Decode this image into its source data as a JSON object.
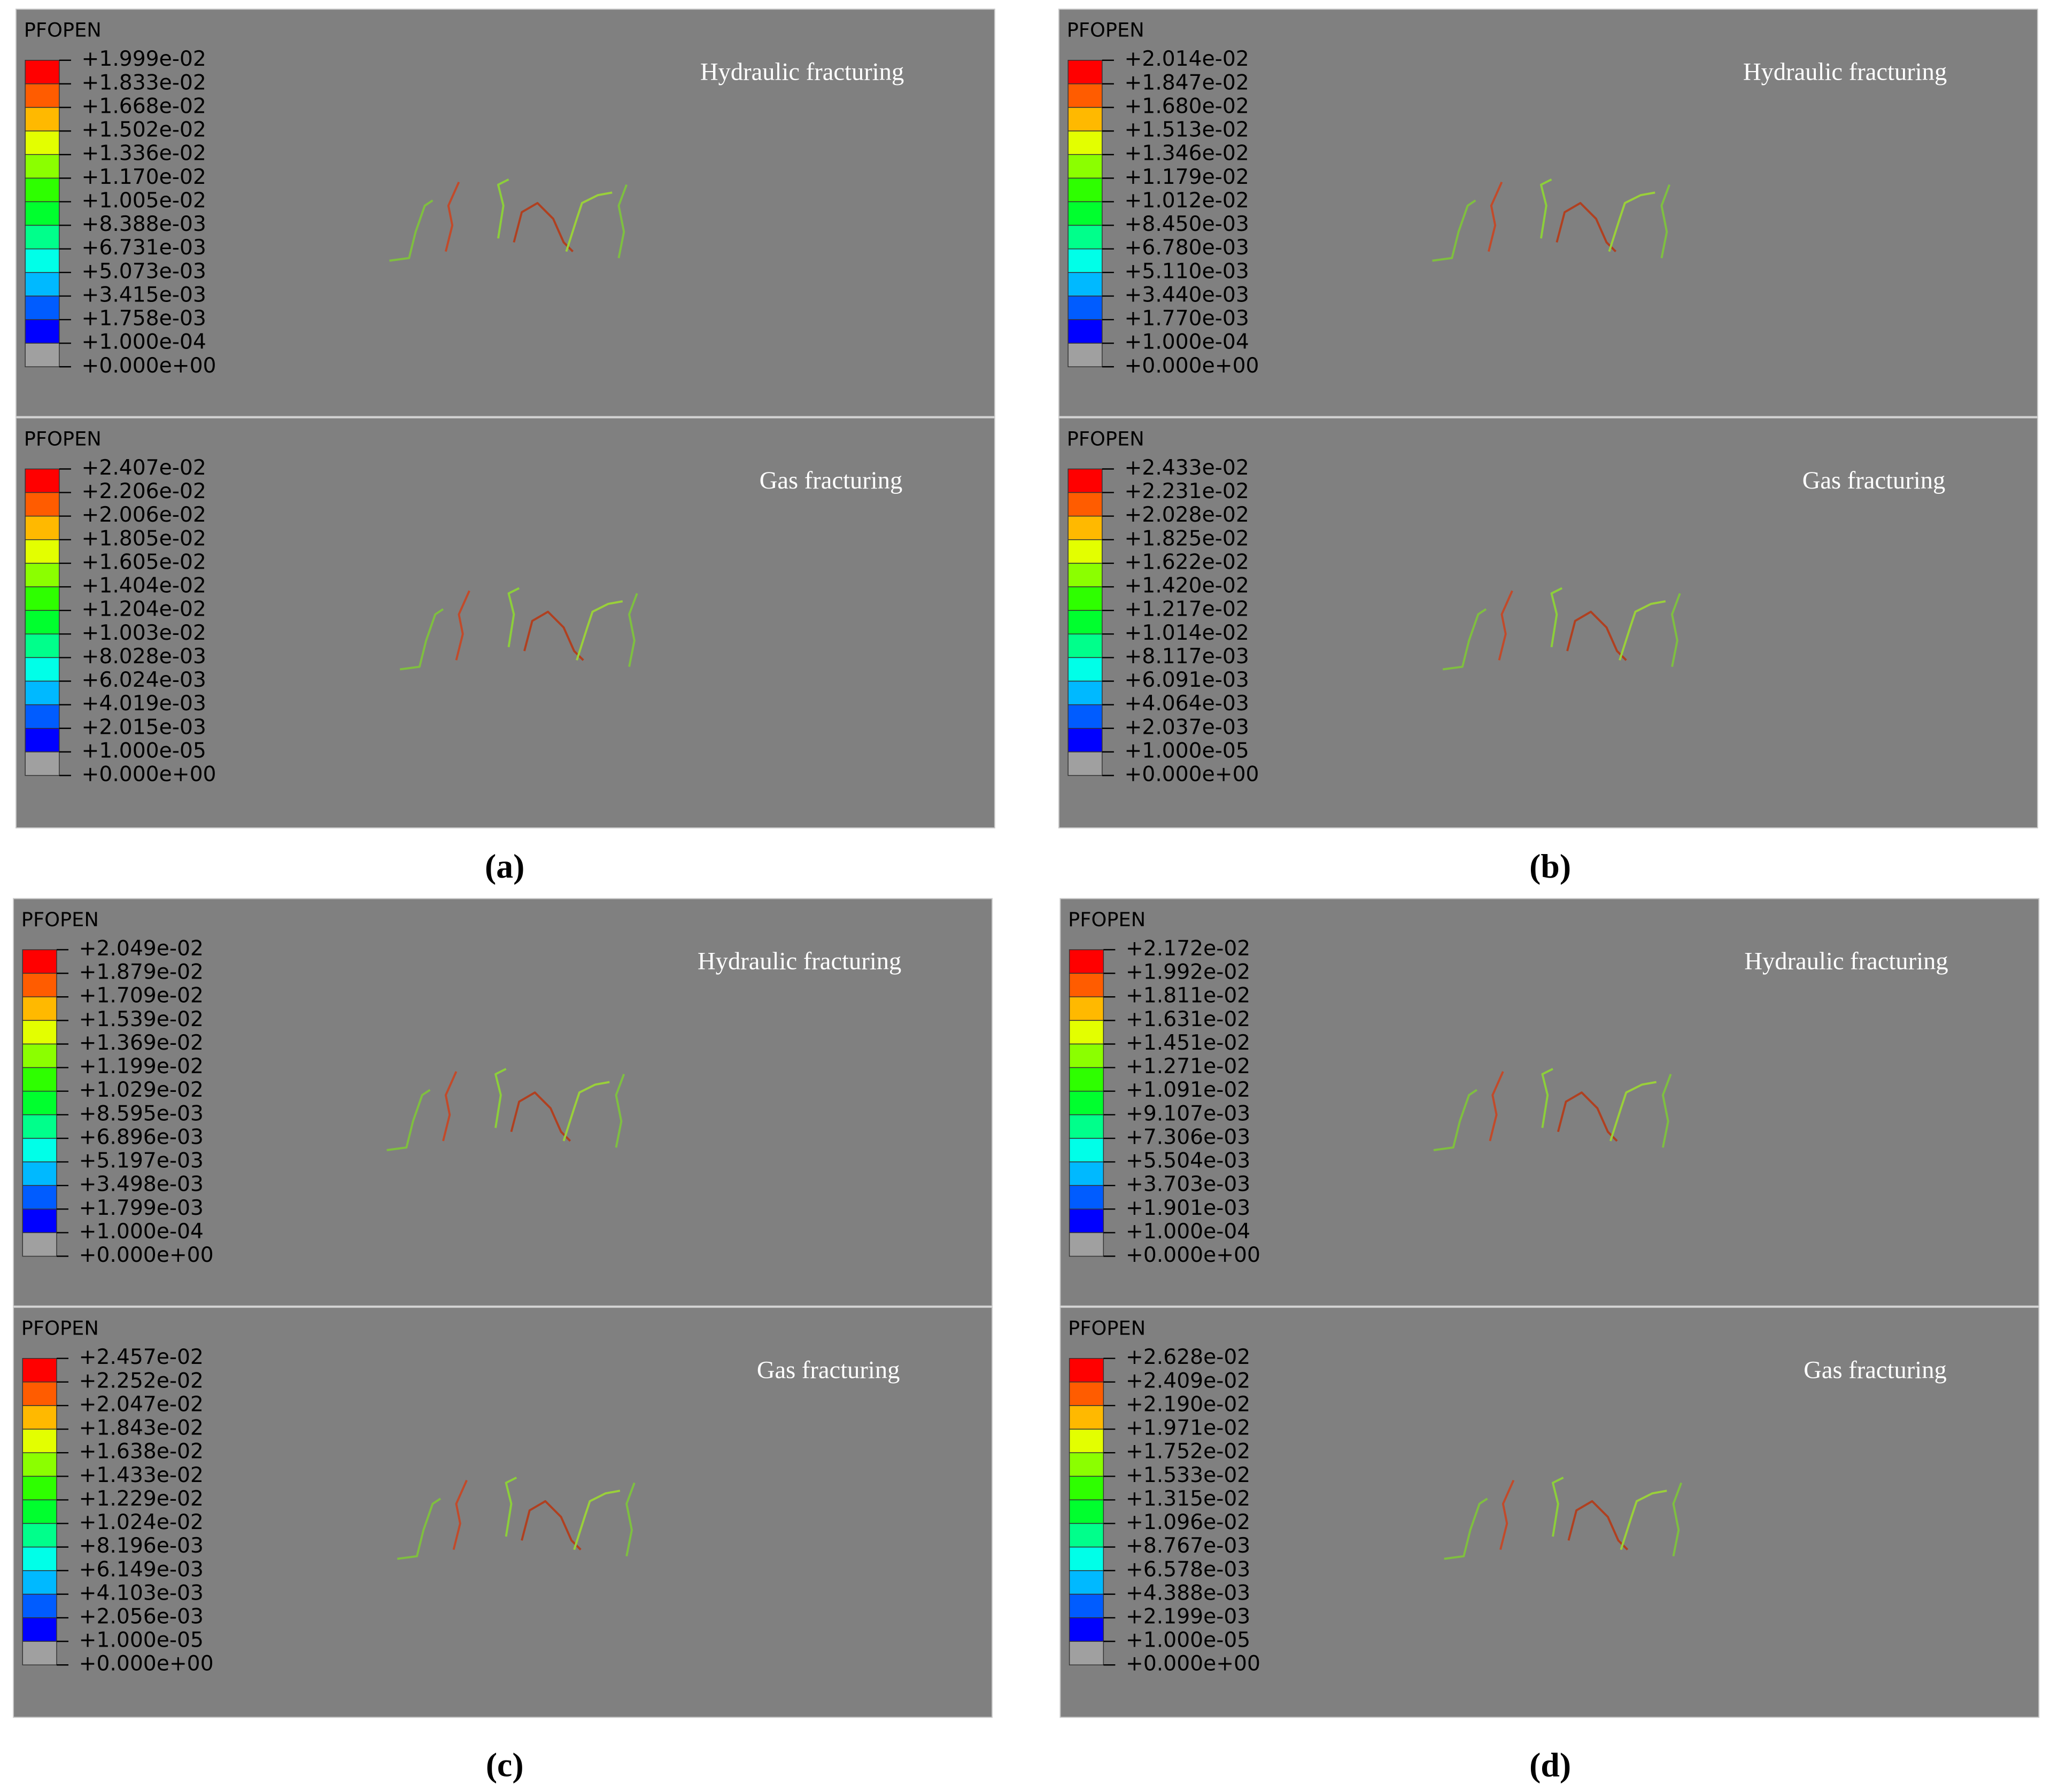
{
  "panels": [
    {
      "label": "(a)",
      "plots": [
        {
          "variable": "PFOPEN",
          "title": "Hydraulic fracturing",
          "legend": [
            "+1.999e-02",
            "+1.833e-02",
            "+1.668e-02",
            "+1.502e-02",
            "+1.336e-02",
            "+1.170e-02",
            "+1.005e-02",
            "+8.388e-03",
            "+6.731e-03",
            "+5.073e-03",
            "+3.415e-03",
            "+1.758e-03",
            "+1.000e-04",
            "+0.000e+00"
          ]
        },
        {
          "variable": "PFOPEN",
          "title": "Gas fracturing",
          "legend": [
            "+2.407e-02",
            "+2.206e-02",
            "+2.006e-02",
            "+1.805e-02",
            "+1.605e-02",
            "+1.404e-02",
            "+1.204e-02",
            "+1.003e-02",
            "+8.028e-03",
            "+6.024e-03",
            "+4.019e-03",
            "+2.015e-03",
            "+1.000e-05",
            "+0.000e+00"
          ]
        }
      ]
    },
    {
      "label": "(b)",
      "plots": [
        {
          "variable": "PFOPEN",
          "title": "Hydraulic fracturing",
          "legend": [
            "+2.014e-02",
            "+1.847e-02",
            "+1.680e-02",
            "+1.513e-02",
            "+1.346e-02",
            "+1.179e-02",
            "+1.012e-02",
            "+8.450e-03",
            "+6.780e-03",
            "+5.110e-03",
            "+3.440e-03",
            "+1.770e-03",
            "+1.000e-04",
            "+0.000e+00"
          ]
        },
        {
          "variable": "PFOPEN",
          "title": "Gas fracturing",
          "legend": [
            "+2.433e-02",
            "+2.231e-02",
            "+2.028e-02",
            "+1.825e-02",
            "+1.622e-02",
            "+1.420e-02",
            "+1.217e-02",
            "+1.014e-02",
            "+8.117e-03",
            "+6.091e-03",
            "+4.064e-03",
            "+2.037e-03",
            "+1.000e-05",
            "+0.000e+00"
          ]
        }
      ]
    },
    {
      "label": "(c)",
      "plots": [
        {
          "variable": "PFOPEN",
          "title": "Hydraulic fracturing",
          "legend": [
            "+2.049e-02",
            "+1.879e-02",
            "+1.709e-02",
            "+1.539e-02",
            "+1.369e-02",
            "+1.199e-02",
            "+1.029e-02",
            "+8.595e-03",
            "+6.896e-03",
            "+5.197e-03",
            "+3.498e-03",
            "+1.799e-03",
            "+1.000e-04",
            "+0.000e+00"
          ]
        },
        {
          "variable": "PFOPEN",
          "title": "Gas fracturing",
          "legend": [
            "+2.457e-02",
            "+2.252e-02",
            "+2.047e-02",
            "+1.843e-02",
            "+1.638e-02",
            "+1.433e-02",
            "+1.229e-02",
            "+1.024e-02",
            "+8.196e-03",
            "+6.149e-03",
            "+4.103e-03",
            "+2.056e-03",
            "+1.000e-05",
            "+0.000e+00"
          ]
        }
      ]
    },
    {
      "label": "(d)",
      "plots": [
        {
          "variable": "PFOPEN",
          "title": "Hydraulic fracturing",
          "legend": [
            "+2.172e-02",
            "+1.992e-02",
            "+1.811e-02",
            "+1.631e-02",
            "+1.451e-02",
            "+1.271e-02",
            "+1.091e-02",
            "+9.107e-03",
            "+7.306e-03",
            "+5.504e-03",
            "+3.703e-03",
            "+1.901e-03",
            "+1.000e-04",
            "+0.000e+00"
          ]
        },
        {
          "variable": "PFOPEN",
          "title": "Gas fracturing",
          "legend": [
            "+2.628e-02",
            "+2.409e-02",
            "+2.190e-02",
            "+1.971e-02",
            "+1.752e-02",
            "+1.533e-02",
            "+1.315e-02",
            "+1.096e-02",
            "+8.767e-03",
            "+6.578e-03",
            "+4.388e-03",
            "+2.199e-03",
            "+1.000e-05",
            "+0.000e+00"
          ]
        }
      ]
    }
  ]
}
